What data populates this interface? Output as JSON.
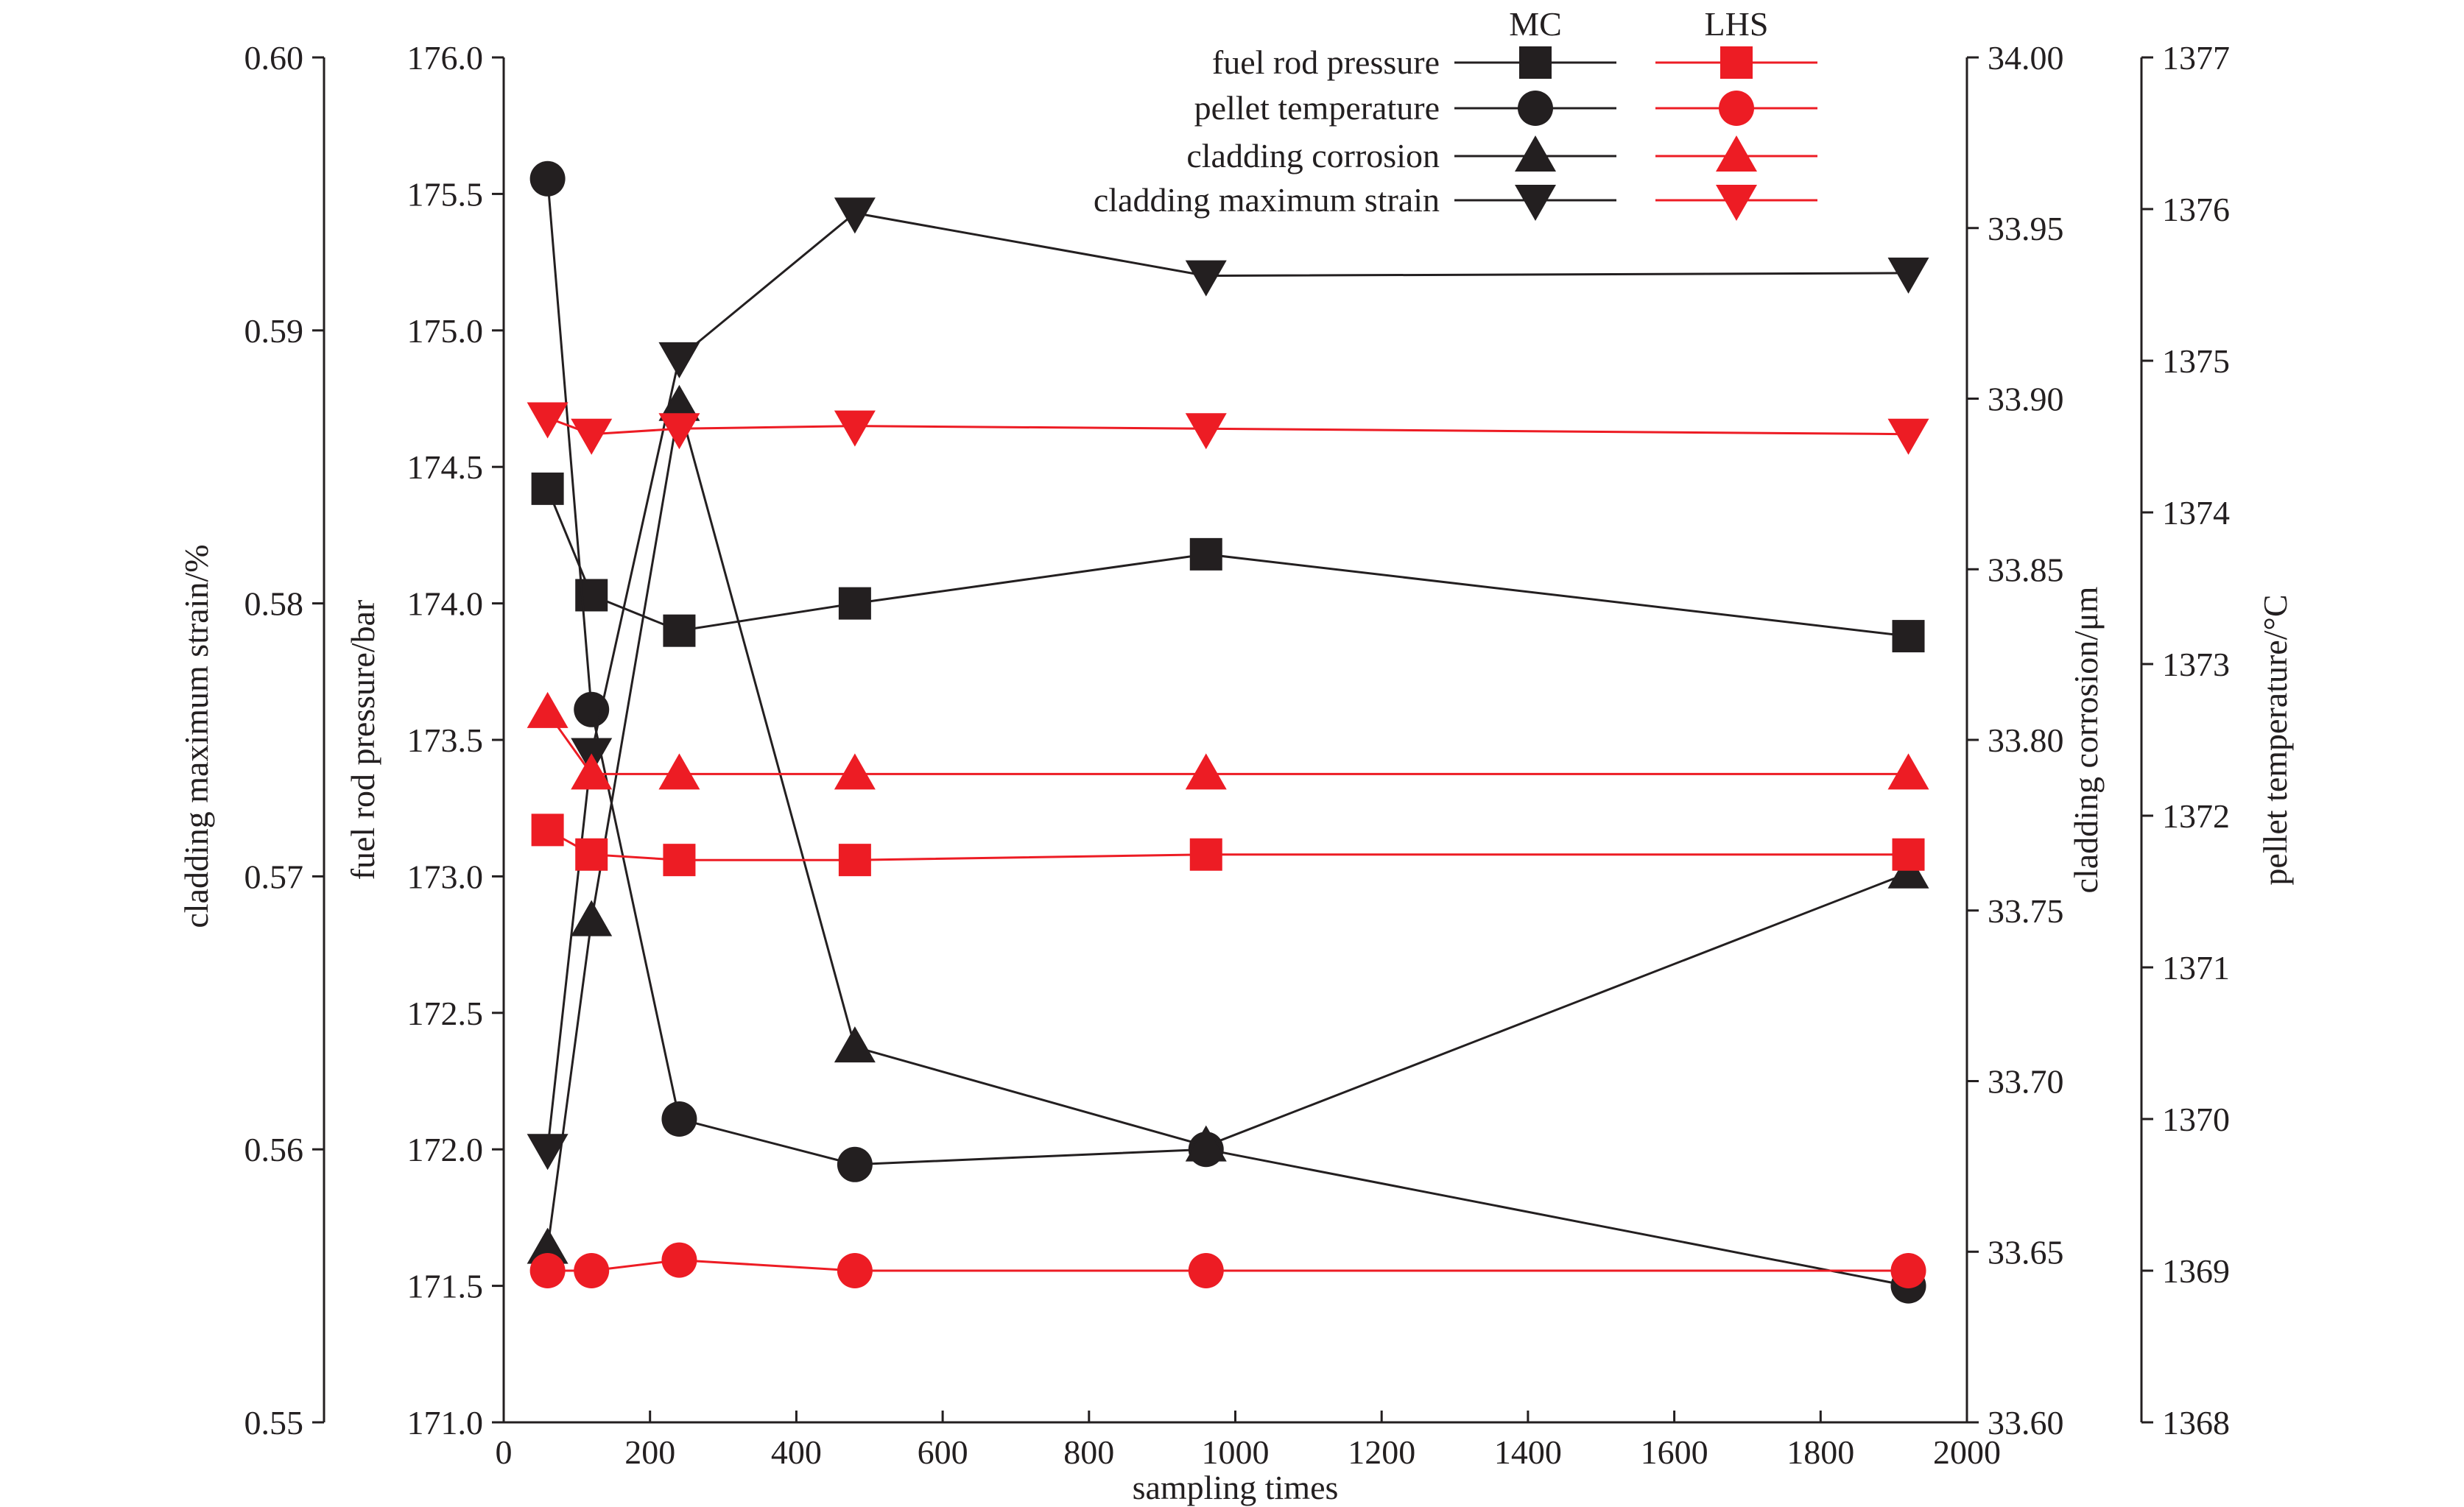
{
  "chart_data": {
    "type": "line",
    "x": {
      "label": "sampling times",
      "lim": [
        0,
        2000
      ],
      "ticks": [
        0,
        200,
        400,
        600,
        800,
        1000,
        1200,
        1400,
        1600,
        1800,
        2000
      ],
      "tick_labels": [
        "0",
        "200",
        "400",
        "600",
        "800",
        "1000",
        "1200",
        "1400",
        "1600",
        "1800",
        "2000"
      ]
    },
    "axes": [
      {
        "id": "strain",
        "label": "cladding maximum strain/%",
        "lim": [
          0.55,
          0.6
        ],
        "ticks": [
          0.55,
          0.56,
          0.57,
          0.58,
          0.59,
          0.6
        ],
        "tick_labels": [
          "0.55",
          "0.56",
          "0.57",
          "0.58",
          "0.59",
          "0.60"
        ]
      },
      {
        "id": "pressure",
        "label": "fuel rod pressure/bar",
        "lim": [
          171.0,
          176.0
        ],
        "ticks": [
          171.0,
          171.5,
          172.0,
          172.5,
          173.0,
          173.5,
          174.0,
          174.5,
          175.0,
          175.5,
          176.0
        ],
        "tick_labels": [
          "171.0",
          "171.5",
          "172.0",
          "172.5",
          "173.0",
          "173.5",
          "174.0",
          "174.5",
          "175.0",
          "175.5",
          "176.0"
        ]
      },
      {
        "id": "corrosion",
        "label": "cladding corrosion/μm",
        "lim": [
          33.6,
          34.0
        ],
        "ticks": [
          33.6,
          33.65,
          33.7,
          33.75,
          33.8,
          33.85,
          33.9,
          33.95,
          34.0
        ],
        "tick_labels": [
          "33.60",
          "33.65",
          "33.70",
          "33.75",
          "33.80",
          "33.85",
          "33.90",
          "33.95",
          "34.00"
        ]
      },
      {
        "id": "temperature",
        "label": "pellet temperature/°C",
        "lim": [
          1368,
          1377
        ],
        "ticks": [
          1368,
          1369,
          1370,
          1371,
          1372,
          1373,
          1374,
          1375,
          1376,
          1377
        ],
        "tick_labels": [
          "1368",
          "1369",
          "1370",
          "1371",
          "1372",
          "1373",
          "1374",
          "1375",
          "1376",
          "1377"
        ]
      }
    ],
    "sampling_times": [
      60,
      120,
      240,
      480,
      960,
      1920
    ],
    "series": [
      {
        "name": "fuel rod pressure",
        "method": "MC",
        "axis": "pressure",
        "marker": "square",
        "color": "#231f20",
        "values": [
          174.42,
          174.03,
          173.9,
          174.0,
          174.18,
          173.88
        ]
      },
      {
        "name": "pellet temperature",
        "method": "MC",
        "axis": "temperature",
        "marker": "circle",
        "color": "#231f20",
        "values": [
          1376.2,
          1372.7,
          1370.0,
          1369.7,
          1369.8,
          1368.9
        ]
      },
      {
        "name": "cladding corrosion",
        "method": "MC",
        "axis": "corrosion",
        "marker": "triangle-up",
        "color": "#231f20",
        "values": [
          33.651,
          33.747,
          33.898,
          33.71,
          33.681,
          33.761
        ]
      },
      {
        "name": "cladding maximum strain",
        "method": "MC",
        "axis": "strain",
        "marker": "triangle-down",
        "color": "#231f20",
        "values": [
          0.56,
          0.5745,
          0.589,
          0.5943,
          0.592,
          0.5921
        ]
      },
      {
        "name": "fuel rod pressure",
        "method": "LHS",
        "axis": "pressure",
        "marker": "square",
        "color": "#ed1c24",
        "values": [
          173.17,
          173.08,
          173.06,
          173.06,
          173.08,
          173.08
        ]
      },
      {
        "name": "pellet temperature",
        "method": "LHS",
        "axis": "temperature",
        "marker": "circle",
        "color": "#ed1c24",
        "values": [
          1369.0,
          1369.0,
          1369.07,
          1369.0,
          1369.0,
          1369.0
        ]
      },
      {
        "name": "cladding corrosion",
        "method": "LHS",
        "axis": "corrosion",
        "marker": "triangle-up",
        "color": "#ed1c24",
        "values": [
          33.808,
          33.79,
          33.79,
          33.79,
          33.79,
          33.79
        ]
      },
      {
        "name": "cladding maximum strain",
        "method": "LHS",
        "axis": "strain",
        "marker": "triangle-down",
        "color": "#ed1c24",
        "values": [
          0.5868,
          0.5862,
          0.5864,
          0.5865,
          0.5864,
          0.5862
        ]
      }
    ],
    "legend": {
      "placement": "top",
      "headers": [
        "MC",
        "LHS"
      ],
      "entries": [
        "fuel rod pressure",
        "pellet temperature",
        "cladding corrosion",
        "cladding maximum strain"
      ],
      "markers": [
        "square",
        "circle",
        "triangle-up",
        "triangle-down"
      ]
    },
    "colors": {
      "MC": "#231f20",
      "LHS": "#ed1c24"
    },
    "grid": false
  }
}
